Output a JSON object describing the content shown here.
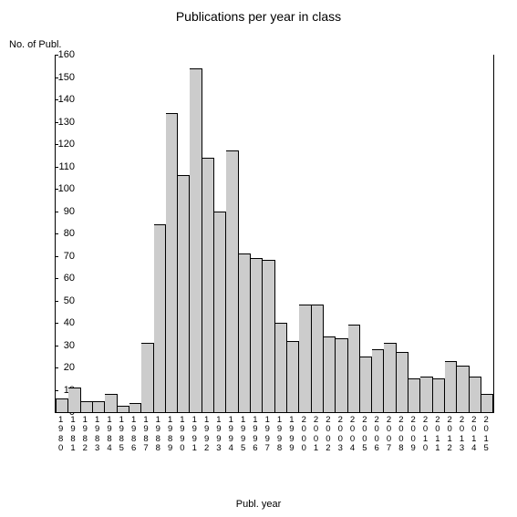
{
  "chart": {
    "type": "bar",
    "title": "Publications per year in class",
    "title_fontsize": 14,
    "y_label": "No. of Publ.",
    "x_label": "Publ. year",
    "label_fontsize": 11,
    "background_color": "#ffffff",
    "axis_color": "#000000",
    "bar_fill_color": "#cccccc",
    "bar_border_color": "#000000",
    "ylim": [
      0,
      160
    ],
    "ytick_step": 10,
    "x_categories": [
      "1980",
      "1981",
      "1982",
      "1983",
      "1984",
      "1985",
      "1986",
      "1987",
      "1988",
      "1989",
      "1990",
      "1991",
      "1992",
      "1993",
      "1994",
      "1995",
      "1996",
      "1997",
      "1998",
      "1999",
      "2000",
      "2001",
      "2002",
      "2003",
      "2004",
      "2005",
      "2006",
      "2007",
      "2008",
      "2009",
      "2010",
      "2011",
      "2012",
      "2013",
      "2014",
      "2015"
    ],
    "values": [
      6,
      11,
      5,
      5,
      8,
      3,
      4,
      31,
      84,
      134,
      106,
      154,
      114,
      90,
      117,
      71,
      69,
      68,
      40,
      32,
      48,
      48,
      34,
      33,
      39,
      25,
      28,
      31,
      27,
      15,
      16,
      15,
      23,
      21,
      16,
      8
    ]
  }
}
